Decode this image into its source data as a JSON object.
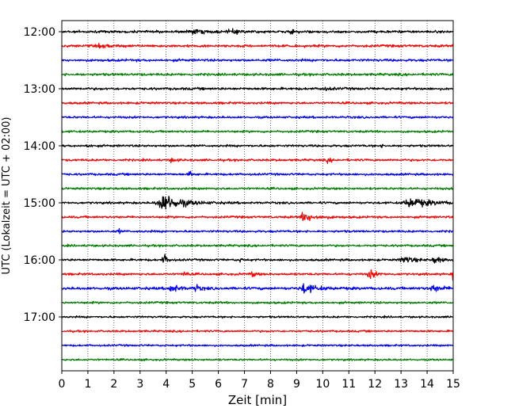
{
  "chart_data": {
    "type": "line",
    "chart_kind": "helicorder-seismogram",
    "title": "",
    "xlabel": "Zeit  [min]",
    "ylabel": "UTC (Lokalzeit = UTC + 02:00)",
    "xlim": [
      0,
      15
    ],
    "x_ticks": [
      0,
      1,
      2,
      3,
      4,
      5,
      6,
      7,
      8,
      9,
      10,
      11,
      12,
      13,
      14,
      15
    ],
    "x_tick_labels": [
      "0",
      "1",
      "2",
      "3",
      "4",
      "5",
      "6",
      "7",
      "8",
      "9",
      "10",
      "11",
      "12",
      "13",
      "14",
      "15"
    ],
    "y_ticks": [
      "12:00",
      "13:00",
      "14:00",
      "15:00",
      "16:00",
      "17:00"
    ],
    "trace_interval_min": 15,
    "vertical_grid": "dotted, every minute",
    "trace_colors": [
      "#000000",
      "#ff0000",
      "#0000ff",
      "#008000"
    ],
    "traces": [
      {
        "start": "12:00",
        "color": "#000000",
        "noise": 0.18,
        "events": [
          {
            "t": 5.0,
            "amp": 0.25,
            "dur": 1.2
          },
          {
            "t": 6.5,
            "amp": 0.25,
            "dur": 0.8
          },
          {
            "t": 8.8,
            "amp": 0.2,
            "dur": 0.5
          }
        ]
      },
      {
        "start": "12:15",
        "color": "#ff0000",
        "noise": 0.18,
        "events": [
          {
            "t": 1.5,
            "amp": 0.18,
            "dur": 1.0
          }
        ]
      },
      {
        "start": "12:30",
        "color": "#0000ff",
        "noise": 0.18,
        "events": []
      },
      {
        "start": "12:45",
        "color": "#008000",
        "noise": 0.18,
        "events": []
      },
      {
        "start": "13:00",
        "color": "#000000",
        "noise": 0.18,
        "events": [
          {
            "t": 10.0,
            "amp": 0.2,
            "dur": 0.6
          }
        ]
      },
      {
        "start": "13:15",
        "color": "#ff0000",
        "noise": 0.16,
        "events": []
      },
      {
        "start": "13:30",
        "color": "#0000ff",
        "noise": 0.16,
        "events": []
      },
      {
        "start": "13:45",
        "color": "#008000",
        "noise": 0.16,
        "events": []
      },
      {
        "start": "14:00",
        "color": "#000000",
        "noise": 0.16,
        "events": [
          {
            "t": 1.0,
            "amp": 0.4,
            "dur": 0.15
          },
          {
            "t": 12.2,
            "amp": 0.2,
            "dur": 0.2
          }
        ]
      },
      {
        "start": "14:15",
        "color": "#ff0000",
        "noise": 0.16,
        "events": [
          {
            "t": 4.2,
            "amp": 0.3,
            "dur": 0.3
          },
          {
            "t": 10.2,
            "amp": 0.3,
            "dur": 0.3
          }
        ]
      },
      {
        "start": "14:30",
        "color": "#0000ff",
        "noise": 0.16,
        "events": [
          {
            "t": 4.9,
            "amp": 0.45,
            "dur": 0.2
          }
        ]
      },
      {
        "start": "14:45",
        "color": "#008000",
        "noise": 0.16,
        "events": []
      },
      {
        "start": "15:00",
        "color": "#000000",
        "noise": 0.16,
        "events": [
          {
            "t": 3.9,
            "amp": 1.3,
            "dur": 1.4
          },
          {
            "t": 13.4,
            "amp": 0.7,
            "dur": 1.6
          }
        ]
      },
      {
        "start": "15:15",
        "color": "#ff0000",
        "noise": 0.16,
        "events": [
          {
            "t": 9.3,
            "amp": 0.6,
            "dur": 1.0
          }
        ]
      },
      {
        "start": "15:30",
        "color": "#0000ff",
        "noise": 0.16,
        "events": [
          {
            "t": 2.2,
            "amp": 0.3,
            "dur": 0.1
          }
        ]
      },
      {
        "start": "15:45",
        "color": "#008000",
        "noise": 0.16,
        "events": []
      },
      {
        "start": "16:00",
        "color": "#000000",
        "noise": 0.16,
        "events": [
          {
            "t": 3.9,
            "amp": 0.9,
            "dur": 0.3
          },
          {
            "t": 6.8,
            "amp": 0.3,
            "dur": 0.2
          },
          {
            "t": 13.1,
            "amp": 0.5,
            "dur": 0.8
          },
          {
            "t": 14.3,
            "amp": 0.5,
            "dur": 0.5
          }
        ]
      },
      {
        "start": "16:15",
        "color": "#ff0000",
        "noise": 0.16,
        "events": [
          {
            "t": 4.7,
            "amp": 0.6,
            "dur": 0.2
          },
          {
            "t": 7.3,
            "amp": 0.4,
            "dur": 0.3
          },
          {
            "t": 11.8,
            "amp": 0.75,
            "dur": 0.4
          },
          {
            "t": 15.0,
            "amp": 0.8,
            "dur": 0.15
          }
        ]
      },
      {
        "start": "16:30",
        "color": "#0000ff",
        "noise": 0.2,
        "events": [
          {
            "t": 4.2,
            "amp": 0.7,
            "dur": 0.5
          },
          {
            "t": 5.1,
            "amp": 0.5,
            "dur": 0.4
          },
          {
            "t": 9.3,
            "amp": 0.7,
            "dur": 0.9
          },
          {
            "t": 14.2,
            "amp": 0.4,
            "dur": 0.8
          }
        ]
      },
      {
        "start": "16:45",
        "color": "#008000",
        "noise": 0.16,
        "events": []
      },
      {
        "start": "17:00",
        "color": "#000000",
        "noise": 0.14,
        "events": []
      },
      {
        "start": "17:15",
        "color": "#ff0000",
        "noise": 0.14,
        "events": []
      },
      {
        "start": "17:30",
        "color": "#0000ff",
        "noise": 0.14,
        "events": []
      },
      {
        "start": "17:45",
        "color": "#008000",
        "noise": 0.14,
        "events": []
      }
    ]
  }
}
